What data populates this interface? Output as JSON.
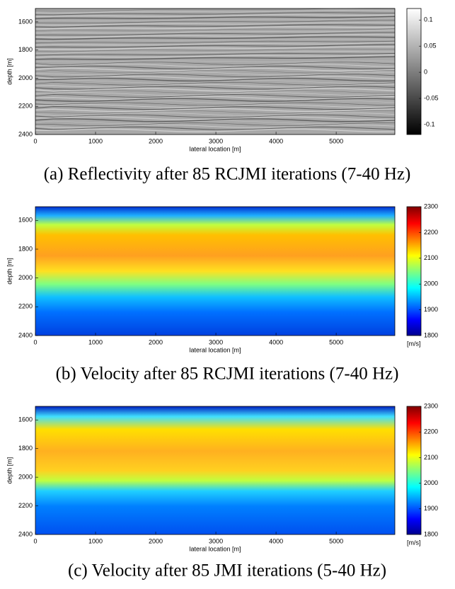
{
  "chart_data": [
    {
      "type": "heatmap",
      "caption": "(a) Reflectivity after 85 RCJMI iterations (7-40 Hz)",
      "xlabel": "lateral location [m]",
      "ylabel": "depth [m]",
      "xlim": [
        0,
        5975
      ],
      "xticks": [
        0,
        1000,
        2000,
        3000,
        4000,
        5000
      ],
      "ylim": [
        1505,
        2400
      ],
      "yticks": [
        1600,
        1800,
        2000,
        2200,
        2400
      ],
      "y_reversed": true,
      "colormap": "gray",
      "clim": [
        -0.119,
        0.122
      ],
      "cticks": [
        -0.1,
        -0.05,
        0,
        0.05,
        0.1
      ]
    },
    {
      "type": "heatmap",
      "caption": "(b) Velocity after 85 RCJMI iterations (7-40 Hz)",
      "xlabel": "lateral location [m]",
      "ylabel": "depth [m]",
      "xlim": [
        0,
        5975
      ],
      "xticks": [
        0,
        1000,
        2000,
        3000,
        4000,
        5000
      ],
      "ylim": [
        1505,
        2400
      ],
      "yticks": [
        1600,
        1800,
        2000,
        2200,
        2400
      ],
      "y_reversed": true,
      "colormap": "jet",
      "clim": [
        1800,
        2300
      ],
      "cticks": [
        1800,
        1900,
        2000,
        2100,
        2200,
        2300
      ],
      "colorbar_unit": "[m/s]"
    },
    {
      "type": "heatmap",
      "caption": "(c) Velocity after 85 JMI iterations (5-40 Hz)",
      "xlabel": "lateral location [m]",
      "ylabel": "depth [m]",
      "xlim": [
        0,
        5975
      ],
      "xticks": [
        0,
        1000,
        2000,
        3000,
        4000,
        5000
      ],
      "ylim": [
        1505,
        2400
      ],
      "yticks": [
        1600,
        1800,
        2000,
        2200,
        2400
      ],
      "y_reversed": true,
      "colormap": "jet",
      "clim": [
        1800,
        2300
      ],
      "cticks": [
        1800,
        1900,
        2000,
        2100,
        2200,
        2300
      ],
      "colorbar_unit": "[m/s]"
    }
  ]
}
